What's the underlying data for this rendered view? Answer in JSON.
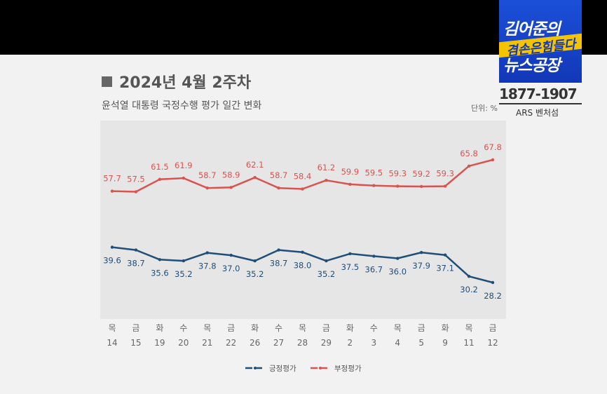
{
  "header": {
    "title": "2024년 4월 2주차",
    "subtitle": "윤석열 대통령 국정수행 평가 일간 변화",
    "unit": "단위: %"
  },
  "branding": {
    "logo_line1": "김어준의",
    "logo_line2": "뉴스공장",
    "logo_stripe": "겸손은힘들다",
    "phone": "1877-1907",
    "ars": "ARS 벤처섬"
  },
  "colors": {
    "positive": "#1f4e79",
    "negative": "#d9534f",
    "plot_bg": "#e6e6e6"
  },
  "chart_data": {
    "type": "line",
    "categories_day": [
      "목",
      "금",
      "화",
      "수",
      "목",
      "금",
      "화",
      "수",
      "목",
      "금",
      "화",
      "수",
      "목",
      "금",
      "화",
      "목",
      "금"
    ],
    "categories_date": [
      "14",
      "15",
      "19",
      "20",
      "21",
      "22",
      "26",
      "27",
      "28",
      "29",
      "2",
      "3",
      "4",
      "5",
      "9",
      "11",
      "12"
    ],
    "series": [
      {
        "name": "부정평가",
        "color": "#d9534f",
        "values": [
          57.7,
          57.5,
          61.5,
          61.9,
          58.7,
          58.9,
          62.1,
          58.7,
          58.4,
          61.2,
          59.9,
          59.5,
          59.3,
          59.2,
          59.3,
          65.8,
          67.8
        ]
      },
      {
        "name": "긍정평가",
        "color": "#1f4e79",
        "values": [
          39.6,
          38.7,
          35.6,
          35.2,
          37.8,
          37.0,
          35.2,
          38.7,
          38.0,
          35.2,
          37.5,
          36.7,
          36.0,
          37.9,
          37.1,
          30.2,
          28.2
        ]
      }
    ],
    "legend": [
      "긍정평가",
      "부정평가"
    ],
    "legend_position": "bottom",
    "grid": false
  }
}
